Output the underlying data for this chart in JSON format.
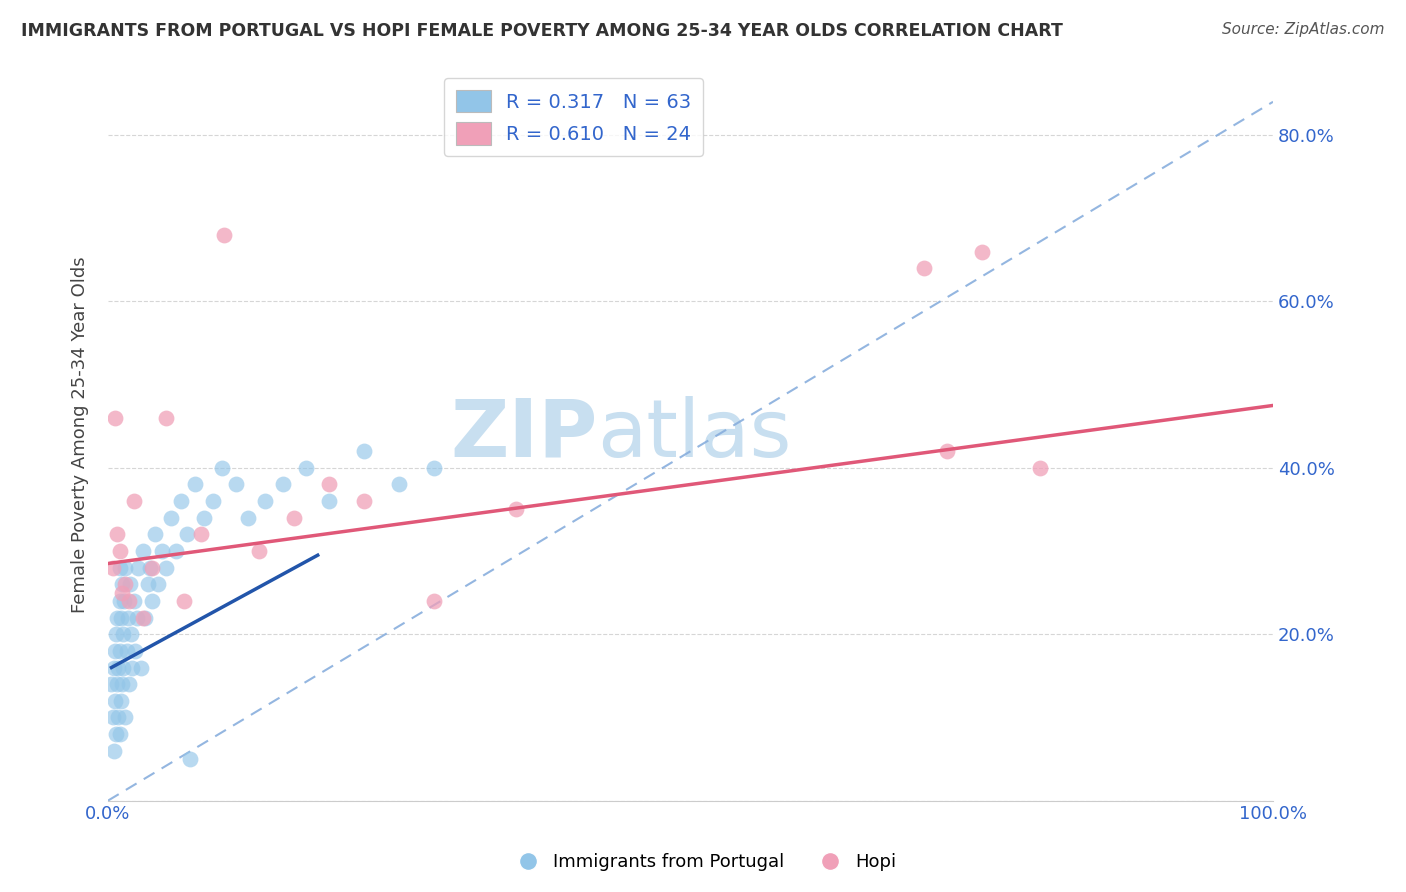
{
  "title": "IMMIGRANTS FROM PORTUGAL VS HOPI FEMALE POVERTY AMONG 25-34 YEAR OLDS CORRELATION CHART",
  "source": "Source: ZipAtlas.com",
  "ylabel": "Female Poverty Among 25-34 Year Olds",
  "xlim": [
    0.0,
    1.0
  ],
  "ylim": [
    0.0,
    0.88
  ],
  "xtick_positions": [
    0.0,
    0.2,
    0.4,
    0.6,
    0.8,
    1.0
  ],
  "xticklabels": [
    "0.0%",
    "",
    "",
    "",
    "",
    "100.0%"
  ],
  "ytick_positions": [
    0.0,
    0.2,
    0.4,
    0.6,
    0.8
  ],
  "yticklabels": [
    "",
    "20.0%",
    "40.0%",
    "60.0%",
    "80.0%"
  ],
  "blue_R": "0.317",
  "blue_N": "63",
  "pink_R": "0.610",
  "pink_N": "24",
  "blue_color": "#92C5E8",
  "pink_color": "#F0A0B8",
  "blue_line_color": "#2255AA",
  "pink_line_color": "#E05878",
  "dashed_line_color": "#88AEDD",
  "legend_text_color": "#3366CC",
  "background_color": "#FFFFFF",
  "grid_color": "#CCCCCC",
  "watermark_color": "#C8DFF0",
  "blue_scatter_x": [
    0.003,
    0.004,
    0.005,
    0.005,
    0.006,
    0.006,
    0.007,
    0.007,
    0.008,
    0.008,
    0.009,
    0.009,
    0.01,
    0.01,
    0.01,
    0.01,
    0.011,
    0.011,
    0.012,
    0.012,
    0.013,
    0.013,
    0.014,
    0.015,
    0.015,
    0.016,
    0.017,
    0.018,
    0.019,
    0.02,
    0.021,
    0.022,
    0.023,
    0.025,
    0.026,
    0.028,
    0.03,
    0.032,
    0.034,
    0.036,
    0.038,
    0.04,
    0.043,
    0.046,
    0.05,
    0.054,
    0.058,
    0.063,
    0.068,
    0.075,
    0.082,
    0.09,
    0.098,
    0.11,
    0.12,
    0.135,
    0.15,
    0.17,
    0.19,
    0.22,
    0.25,
    0.28,
    0.07
  ],
  "blue_scatter_y": [
    0.14,
    0.1,
    0.06,
    0.16,
    0.12,
    0.18,
    0.08,
    0.2,
    0.14,
    0.22,
    0.1,
    0.16,
    0.08,
    0.18,
    0.24,
    0.28,
    0.12,
    0.22,
    0.14,
    0.26,
    0.16,
    0.2,
    0.24,
    0.1,
    0.28,
    0.18,
    0.22,
    0.14,
    0.26,
    0.2,
    0.16,
    0.24,
    0.18,
    0.22,
    0.28,
    0.16,
    0.3,
    0.22,
    0.26,
    0.28,
    0.24,
    0.32,
    0.26,
    0.3,
    0.28,
    0.34,
    0.3,
    0.36,
    0.32,
    0.38,
    0.34,
    0.36,
    0.4,
    0.38,
    0.34,
    0.36,
    0.38,
    0.4,
    0.36,
    0.42,
    0.38,
    0.4,
    0.05
  ],
  "pink_scatter_x": [
    0.004,
    0.006,
    0.008,
    0.01,
    0.012,
    0.015,
    0.018,
    0.022,
    0.03,
    0.038,
    0.05,
    0.065,
    0.08,
    0.1,
    0.13,
    0.16,
    0.19,
    0.22,
    0.28,
    0.35,
    0.7,
    0.72,
    0.75,
    0.8
  ],
  "pink_scatter_y": [
    0.28,
    0.46,
    0.32,
    0.3,
    0.25,
    0.26,
    0.24,
    0.36,
    0.22,
    0.28,
    0.46,
    0.24,
    0.32,
    0.68,
    0.3,
    0.34,
    0.38,
    0.36,
    0.24,
    0.35,
    0.64,
    0.42,
    0.66,
    0.4
  ],
  "blue_line_x": [
    0.003,
    0.18
  ],
  "blue_line_y": [
    0.16,
    0.295
  ],
  "pink_line_x": [
    0.0,
    1.0
  ],
  "pink_line_y": [
    0.285,
    0.475
  ],
  "dashed_line_x": [
    0.0,
    1.0
  ],
  "dashed_line_y": [
    0.0,
    0.84
  ]
}
